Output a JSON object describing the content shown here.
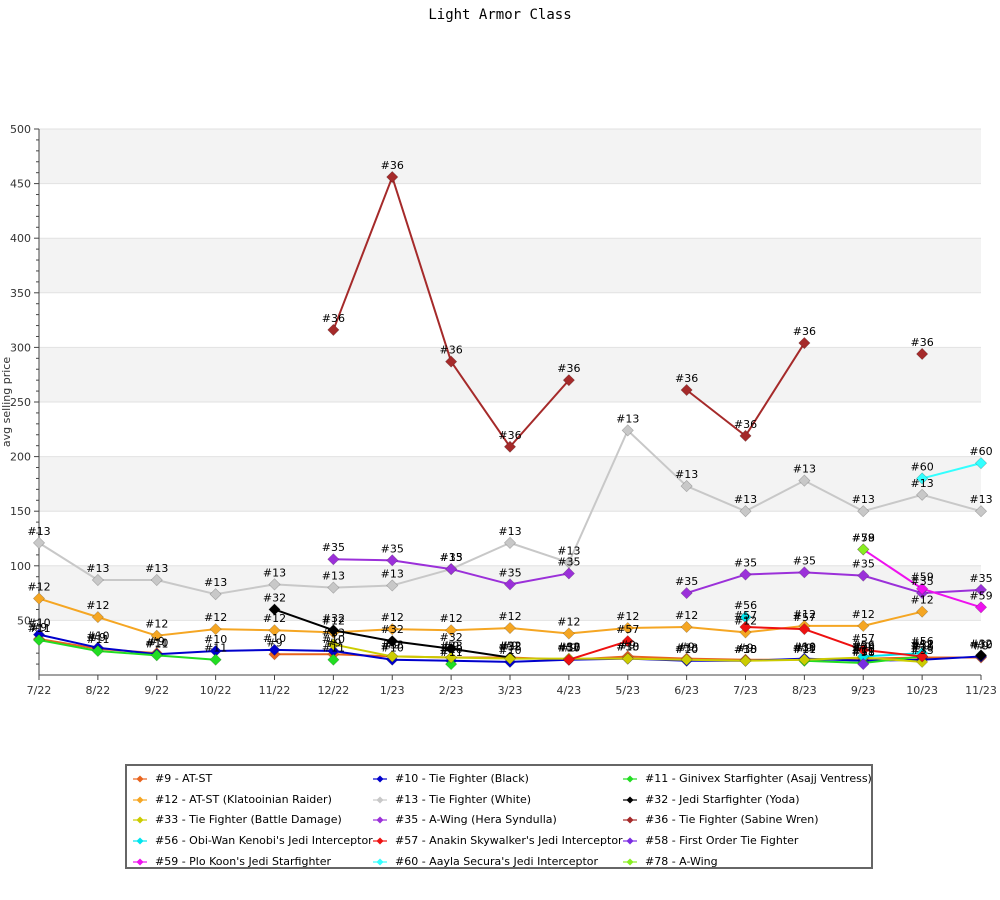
{
  "chart_data": {
    "type": "line",
    "title": "Light Armor Class",
    "xlabel": "",
    "ylabel": "avg selling price",
    "ylim": [
      0,
      500
    ],
    "yticks": [
      50,
      100,
      150,
      200,
      250,
      300,
      350,
      400,
      450,
      500
    ],
    "categories": [
      "7/22",
      "8/22",
      "9/22",
      "10/22",
      "11/22",
      "12/22",
      "1/23",
      "2/23",
      "3/23",
      "4/23",
      "5/23",
      "6/23",
      "7/23",
      "8/23",
      "9/23",
      "10/23",
      "11/23"
    ],
    "grid": "horizontal bands",
    "legend_position": "bottom",
    "series": [
      {
        "name": "#9 - AT-ST",
        "label": "#9",
        "color": "#e8641e",
        "values": [
          33,
          24,
          20,
          null,
          19,
          19,
          17,
          16,
          16,
          14,
          17,
          15,
          14,
          14,
          15,
          16,
          16
        ]
      },
      {
        "name": "#10 - Tie Fighter (Black)",
        "label": "#10",
        "color": "#0000cc",
        "values": [
          37,
          25,
          19,
          22,
          23,
          22,
          14,
          13,
          12,
          14,
          15,
          13,
          13,
          15,
          13,
          14,
          17
        ]
      },
      {
        "name": "#11 - Ginivex Starfighter (Asajj Ventress)",
        "label": "#11",
        "color": "#22dd22",
        "values": [
          32,
          22,
          18,
          14,
          null,
          14,
          null,
          10,
          null,
          null,
          null,
          null,
          null,
          13,
          11,
          17,
          null
        ]
      },
      {
        "name": "#12 - AT-ST (Klatooinian Raider)",
        "label": "#12",
        "color": "#f5a623",
        "values": [
          70,
          53,
          36,
          42,
          41,
          39,
          42,
          41,
          43,
          38,
          43,
          44,
          39,
          45,
          45,
          58,
          null
        ]
      },
      {
        "name": "#13 - Tie Fighter (White)",
        "label": "#13",
        "color": "#c8c8c8",
        "values": [
          121,
          87,
          87,
          74,
          83,
          80,
          82,
          97,
          121,
          103,
          224,
          173,
          150,
          178,
          150,
          165,
          150
        ]
      },
      {
        "name": "#32 - Jedi Starfighter (Yoda)",
        "label": "#32",
        "color": "#000000",
        "values": [
          null,
          null,
          null,
          null,
          60,
          41,
          31,
          24,
          16,
          null,
          null,
          null,
          null,
          null,
          null,
          null,
          18
        ]
      },
      {
        "name": "#33 - Tie Fighter (Battle Damage)",
        "label": "#33",
        "color": "#cccc00",
        "values": [
          null,
          null,
          null,
          null,
          null,
          28,
          17,
          16,
          15,
          15,
          15,
          14,
          13,
          14,
          16,
          12,
          null
        ]
      },
      {
        "name": "#35 - A-Wing (Hera Syndulla)",
        "label": "#35",
        "color": "#9b30d9",
        "values": [
          null,
          null,
          null,
          null,
          null,
          106,
          105,
          97,
          83,
          93,
          null,
          75,
          92,
          94,
          91,
          75,
          78
        ]
      },
      {
        "name": "#36 - Tie Fighter (Sabine Wren)",
        "label": "#36",
        "color": "#a52a2a",
        "values": [
          null,
          null,
          null,
          null,
          null,
          316,
          456,
          287,
          209,
          270,
          null,
          261,
          219,
          304,
          null,
          294,
          null
        ]
      },
      {
        "name": "#56 - Obi-Wan Kenobi's Jedi Interceptor",
        "label": "#56",
        "color": "#00e5ee",
        "values": [
          null,
          null,
          null,
          null,
          null,
          null,
          null,
          null,
          null,
          null,
          null,
          null,
          53,
          null,
          17,
          20,
          null
        ]
      },
      {
        "name": "#57 - Anakin Skywalker's Jedi Interceptor",
        "label": "#57",
        "color": "#ee1111",
        "values": [
          null,
          null,
          null,
          null,
          null,
          null,
          null,
          null,
          null,
          14,
          31,
          null,
          44,
          42,
          23,
          17,
          null
        ]
      },
      {
        "name": "#58 - First Order Tie Fighter",
        "label": "#58",
        "color": "#7a2be2",
        "values": [
          null,
          null,
          null,
          null,
          null,
          null,
          null,
          null,
          null,
          null,
          null,
          null,
          null,
          null,
          10,
          null,
          null
        ]
      },
      {
        "name": "#59 - Plo Koon's Jedi Starfighter",
        "label": "#59",
        "color": "#ee11ee",
        "values": [
          null,
          null,
          null,
          null,
          null,
          null,
          null,
          null,
          null,
          null,
          null,
          null,
          null,
          null,
          115,
          79,
          62
        ]
      },
      {
        "name": "#60 - Aayla Secura's Jedi Interceptor",
        "label": "#60",
        "color": "#33ffff",
        "values": [
          null,
          null,
          null,
          null,
          null,
          null,
          null,
          null,
          null,
          null,
          null,
          null,
          null,
          null,
          null,
          180,
          194
        ]
      },
      {
        "name": "#78 - A-Wing",
        "label": "#78",
        "color": "#88ee22",
        "values": [
          null,
          null,
          null,
          null,
          null,
          null,
          null,
          null,
          null,
          null,
          null,
          null,
          null,
          null,
          115,
          null,
          null
        ]
      }
    ]
  }
}
